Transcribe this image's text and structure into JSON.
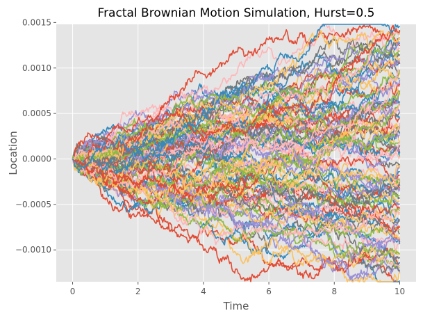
{
  "chart_data": {
    "type": "line",
    "title": "Fractal Brownian Motion Simulation, Hurst=0.5",
    "xlabel": "Time",
    "ylabel": "Location",
    "xlim": [
      -0.5,
      10.5
    ],
    "ylim": [
      -0.00135,
      0.00148
    ],
    "x_ticks": [
      0,
      2,
      4,
      6,
      8,
      10
    ],
    "x_tick_labels": [
      "0",
      "2",
      "4",
      "6",
      "8",
      "10"
    ],
    "y_ticks": [
      -0.001,
      -0.0005,
      0.0,
      0.0005,
      0.001,
      0.0015
    ],
    "y_tick_labels": [
      "−0.0010",
      "−0.0005",
      "0.0000",
      "0.0005",
      "0.0010",
      "0.0015"
    ],
    "grid": true,
    "legend": "none",
    "hurst": 0.5,
    "n_paths": 100,
    "t_start": 0,
    "t_end": 10,
    "start_value": 0.0,
    "end_value_range": [
      -0.00135,
      0.00147
    ],
    "series_colors": [
      "#E24A33",
      "#348ABD",
      "#988ED5",
      "#777777",
      "#FBC15E",
      "#8EBA42",
      "#FFB5B8"
    ],
    "background_color": "#E5E5E5"
  }
}
